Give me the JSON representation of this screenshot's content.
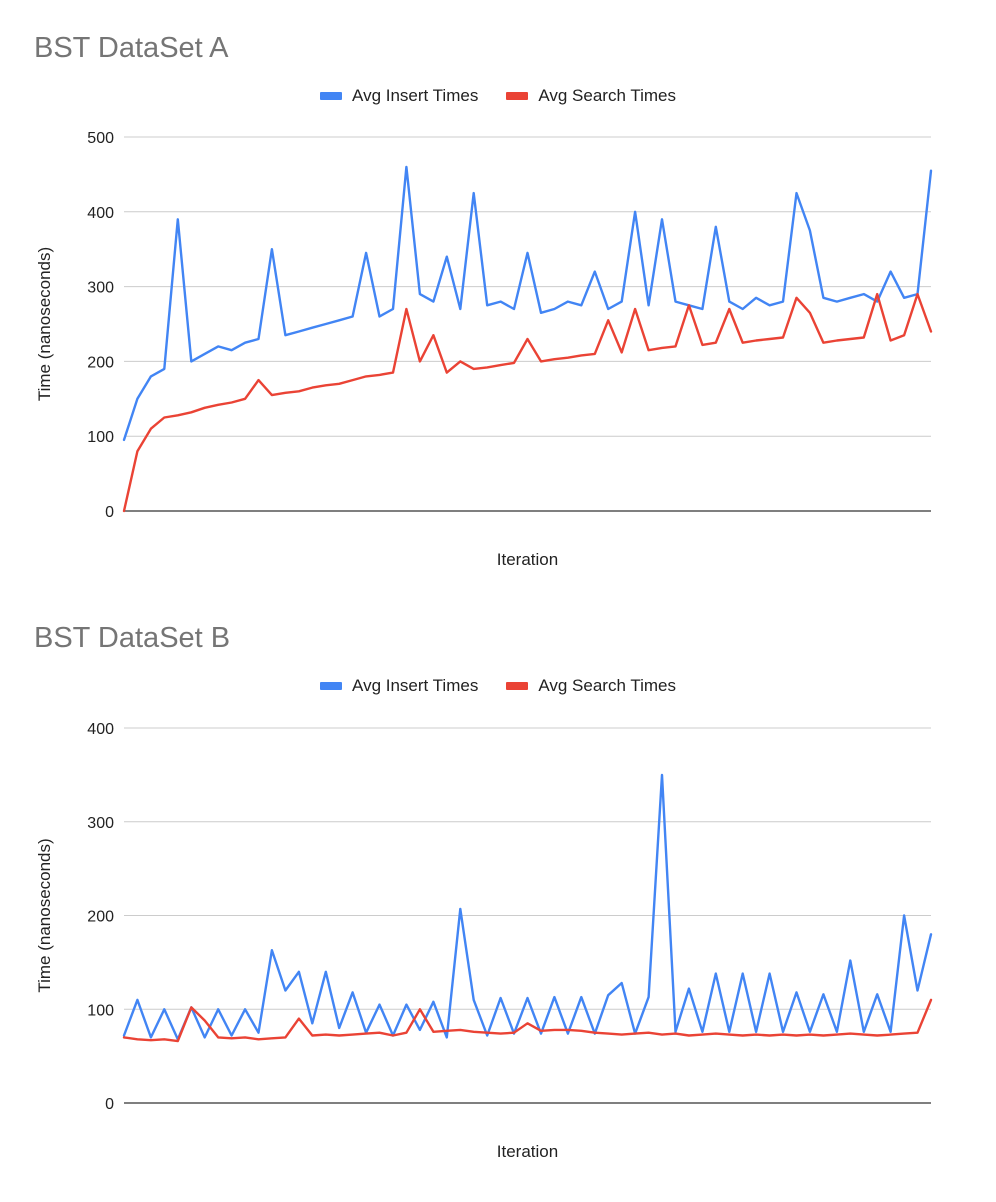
{
  "chart_data": [
    {
      "type": "line",
      "title": "BST DataSet A",
      "xlabel": "Iteration",
      "ylabel": "Time (nanoseconds)",
      "ylim": [
        0,
        500
      ],
      "yticks": [
        0,
        100,
        200,
        300,
        400,
        500
      ],
      "grid": true,
      "legend_position": "top",
      "x": [
        0,
        1,
        2,
        3,
        4,
        5,
        6,
        7,
        8,
        9,
        10,
        11,
        12,
        13,
        14,
        15,
        16,
        17,
        18,
        19,
        20,
        21,
        22,
        23,
        24,
        25,
        26,
        27,
        28,
        29,
        30,
        31,
        32,
        33,
        34,
        35,
        36,
        37,
        38,
        39,
        40,
        41,
        42,
        43,
        44,
        45,
        46,
        47,
        48,
        49,
        50,
        51,
        52,
        53,
        54,
        55,
        56,
        57,
        58,
        59,
        60
      ],
      "series": [
        {
          "name": "Avg Insert Times",
          "color": "#4285f4",
          "values": [
            95,
            150,
            180,
            190,
            390,
            200,
            210,
            220,
            215,
            225,
            230,
            350,
            235,
            240,
            245,
            250,
            255,
            260,
            345,
            260,
            270,
            460,
            290,
            280,
            340,
            270,
            425,
            275,
            280,
            270,
            345,
            265,
            270,
            280,
            275,
            320,
            270,
            280,
            400,
            275,
            390,
            280,
            275,
            270,
            380,
            280,
            270,
            285,
            275,
            280,
            425,
            375,
            285,
            280,
            285,
            290,
            280,
            320,
            285,
            290,
            455
          ]
        },
        {
          "name": "Avg Search Times",
          "color": "#ea4335",
          "values": [
            0,
            80,
            110,
            125,
            128,
            132,
            138,
            142,
            145,
            150,
            175,
            155,
            158,
            160,
            165,
            168,
            170,
            175,
            180,
            182,
            185,
            270,
            200,
            235,
            185,
            200,
            190,
            192,
            195,
            198,
            230,
            200,
            203,
            205,
            208,
            210,
            255,
            212,
            270,
            215,
            218,
            220,
            275,
            222,
            225,
            270,
            225,
            228,
            230,
            232,
            285,
            265,
            225,
            228,
            230,
            232,
            290,
            228,
            235,
            290,
            240
          ]
        }
      ]
    },
    {
      "type": "line",
      "title": "BST DataSet B",
      "xlabel": "Iteration",
      "ylabel": "Time (nanoseconds)",
      "ylim": [
        0,
        400
      ],
      "yticks": [
        0,
        100,
        200,
        300,
        400
      ],
      "grid": true,
      "legend_position": "top",
      "x": [
        0,
        1,
        2,
        3,
        4,
        5,
        6,
        7,
        8,
        9,
        10,
        11,
        12,
        13,
        14,
        15,
        16,
        17,
        18,
        19,
        20,
        21,
        22,
        23,
        24,
        25,
        26,
        27,
        28,
        29,
        30,
        31,
        32,
        33,
        34,
        35,
        36,
        37,
        38,
        39,
        40,
        41,
        42,
        43,
        44,
        45,
        46,
        47,
        48,
        49,
        50,
        51,
        52,
        53,
        54,
        55,
        56,
        57,
        58,
        59,
        60
      ],
      "series": [
        {
          "name": "Avg Insert Times",
          "color": "#4285f4",
          "values": [
            72,
            110,
            70,
            100,
            68,
            102,
            70,
            100,
            72,
            100,
            75,
            163,
            120,
            140,
            85,
            140,
            80,
            118,
            75,
            105,
            72,
            105,
            78,
            108,
            70,
            207,
            110,
            72,
            112,
            74,
            112,
            74,
            113,
            74,
            113,
            74,
            115,
            128,
            74,
            113,
            350,
            76,
            122,
            76,
            138,
            76,
            138,
            76,
            138,
            76,
            118,
            76,
            116,
            76,
            152,
            76,
            116,
            76,
            200,
            120,
            180
          ]
        },
        {
          "name": "Avg Search Times",
          "color": "#ea4335",
          "values": [
            70,
            68,
            67,
            68,
            66,
            102,
            88,
            70,
            69,
            70,
            68,
            69,
            70,
            90,
            72,
            73,
            72,
            73,
            74,
            75,
            72,
            75,
            100,
            76,
            77,
            78,
            76,
            75,
            74,
            75,
            85,
            77,
            78,
            78,
            77,
            75,
            74,
            73,
            74,
            75,
            73,
            74,
            72,
            73,
            74,
            73,
            72,
            73,
            72,
            73,
            72,
            73,
            72,
            73,
            74,
            73,
            72,
            73,
            74,
            75,
            110
          ]
        }
      ]
    }
  ]
}
